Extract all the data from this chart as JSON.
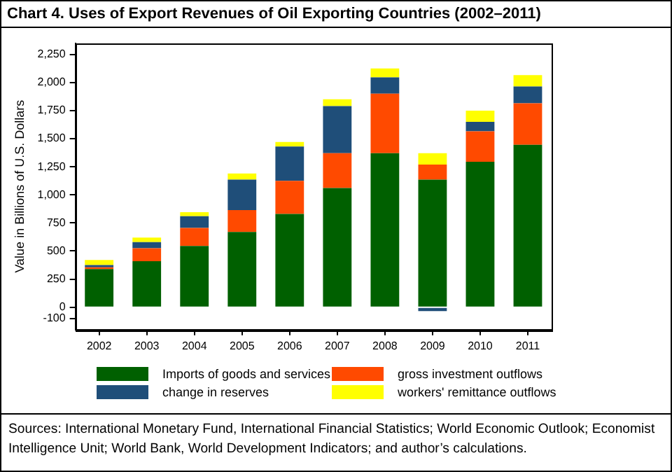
{
  "chart_data": {
    "type": "bar",
    "title": "Chart 4. Uses of Export Revenues of Oil Exporting Countries (2002–2011)",
    "ylabel": "Value in Billions of U.S. Dollars",
    "categories": [
      "2002",
      "2003",
      "2004",
      "2005",
      "2006",
      "2007",
      "2008",
      "2009",
      "2010",
      "2011"
    ],
    "stacked": true,
    "series": [
      {
        "name": "Imports of goods and services",
        "color": "#006000",
        "values": [
          340,
          410,
          545,
          670,
          830,
          1060,
          1370,
          1135,
          1295,
          1445
        ]
      },
      {
        "name": "gross investment outflows",
        "color": "#ff4a00",
        "values": [
          15,
          115,
          160,
          195,
          295,
          310,
          530,
          135,
          270,
          370
        ]
      },
      {
        "name": "change in reserves",
        "color": "#1f4e79",
        "values": [
          20,
          55,
          105,
          270,
          305,
          420,
          145,
          -35,
          85,
          150
        ]
      },
      {
        "name": "workers' remittance outflows",
        "color": "#ffff00",
        "values": [
          45,
          40,
          35,
          55,
          40,
          60,
          80,
          100,
          100,
          100
        ]
      }
    ],
    "ylim": [
      -200,
      2350
    ],
    "yticks": [
      {
        "value": -100,
        "label": "-100"
      },
      0,
      {
        "value": 250,
        "label": "250"
      },
      {
        "value": 500,
        "label": "500"
      },
      {
        "value": 750,
        "label": "750"
      },
      {
        "value": 1000,
        "label": "1,000"
      },
      {
        "value": 1250,
        "label": "1,250"
      },
      {
        "value": 1500,
        "label": "1,500"
      },
      {
        "value": 1750,
        "label": "1,750"
      },
      {
        "value": 2000,
        "label": "2,000"
      },
      {
        "value": 2250,
        "label": "2,250"
      }
    ],
    "grid": false,
    "legend": "bottom",
    "annotations": [
      "Sources: International Monetary Fund, International Financial Statistics; World Economic Outlook; Economist Intelligence Unit; World Bank, World Development Indicators; and author’s calculations."
    ]
  }
}
